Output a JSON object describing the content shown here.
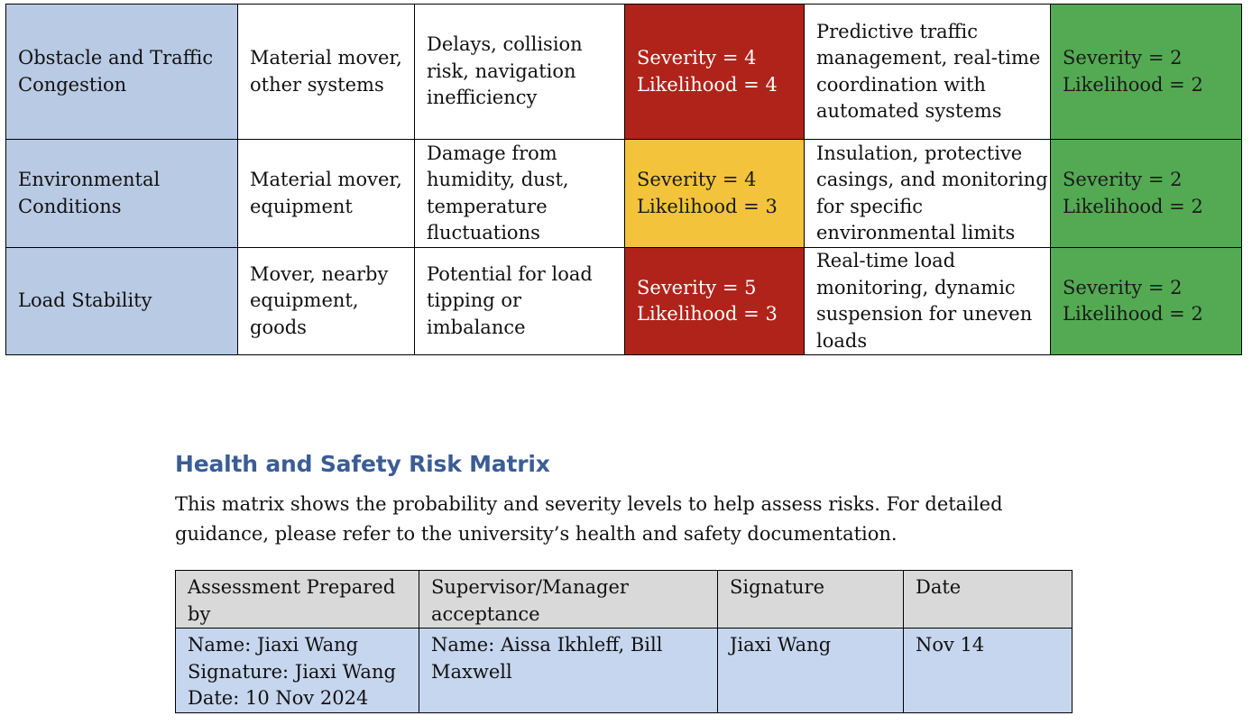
{
  "risk_rows": [
    {
      "hazard": "Obstacle and Traffic Congestion",
      "who": "Material mover, other systems",
      "harm": "Delays, collision risk, navigation inefficiency",
      "initial": {
        "severity": "Severity = 4",
        "likelihood": "Likelihood = 4",
        "color": "#b0231a"
      },
      "mitigation": "Predictive traffic management, real-time coordination with automated systems",
      "residual": {
        "severity": "Severity = 2",
        "likelihood": "Likelihood = 2",
        "color": "#53aa53"
      }
    },
    {
      "hazard": "Environmental Conditions",
      "who": "Material mover, equipment",
      "harm": "Damage from humidity, dust, temperature fluctuations",
      "initial": {
        "severity": "Severity = 4",
        "likelihood": "Likelihood = 3",
        "color": "#f3c33c"
      },
      "mitigation": "Insulation, protective casings, and monitoring for specific environmental limits",
      "residual": {
        "severity": "Severity = 2",
        "likelihood": "Likelihood = 2",
        "color": "#53aa53"
      }
    },
    {
      "hazard": "Load Stability",
      "who": "Mover, nearby equipment, goods",
      "harm": "Potential for load tipping or imbalance",
      "initial": {
        "severity": "Severity = 5",
        "likelihood": "Likelihood = 3",
        "color": "#b0231a"
      },
      "mitigation": "Real-time load monitoring, dynamic suspension for uneven loads",
      "residual": {
        "severity": "Severity = 2",
        "likelihood": "Likelihood = 2",
        "color": "#53aa53"
      }
    }
  ],
  "section": {
    "title": "Health and Safety Risk Matrix",
    "description": "This matrix shows the probability and severity levels to help assess risks. For detailed guidance, please refer to the university’s health and safety documentation."
  },
  "signoff": {
    "headers": [
      "Assessment Prepared by",
      "Supervisor/Manager acceptance",
      "Signature",
      "Date"
    ],
    "prepared_by": {
      "name": "Name: Jiaxi Wang",
      "signature": "Signature:  Jiaxi Wang",
      "date": "Date:  10 Nov 2024"
    },
    "supervisor": "Name:  Aissa Ikhleff, Bill Maxwell",
    "signature": "Jiaxi Wang",
    "date": "Nov 14"
  }
}
